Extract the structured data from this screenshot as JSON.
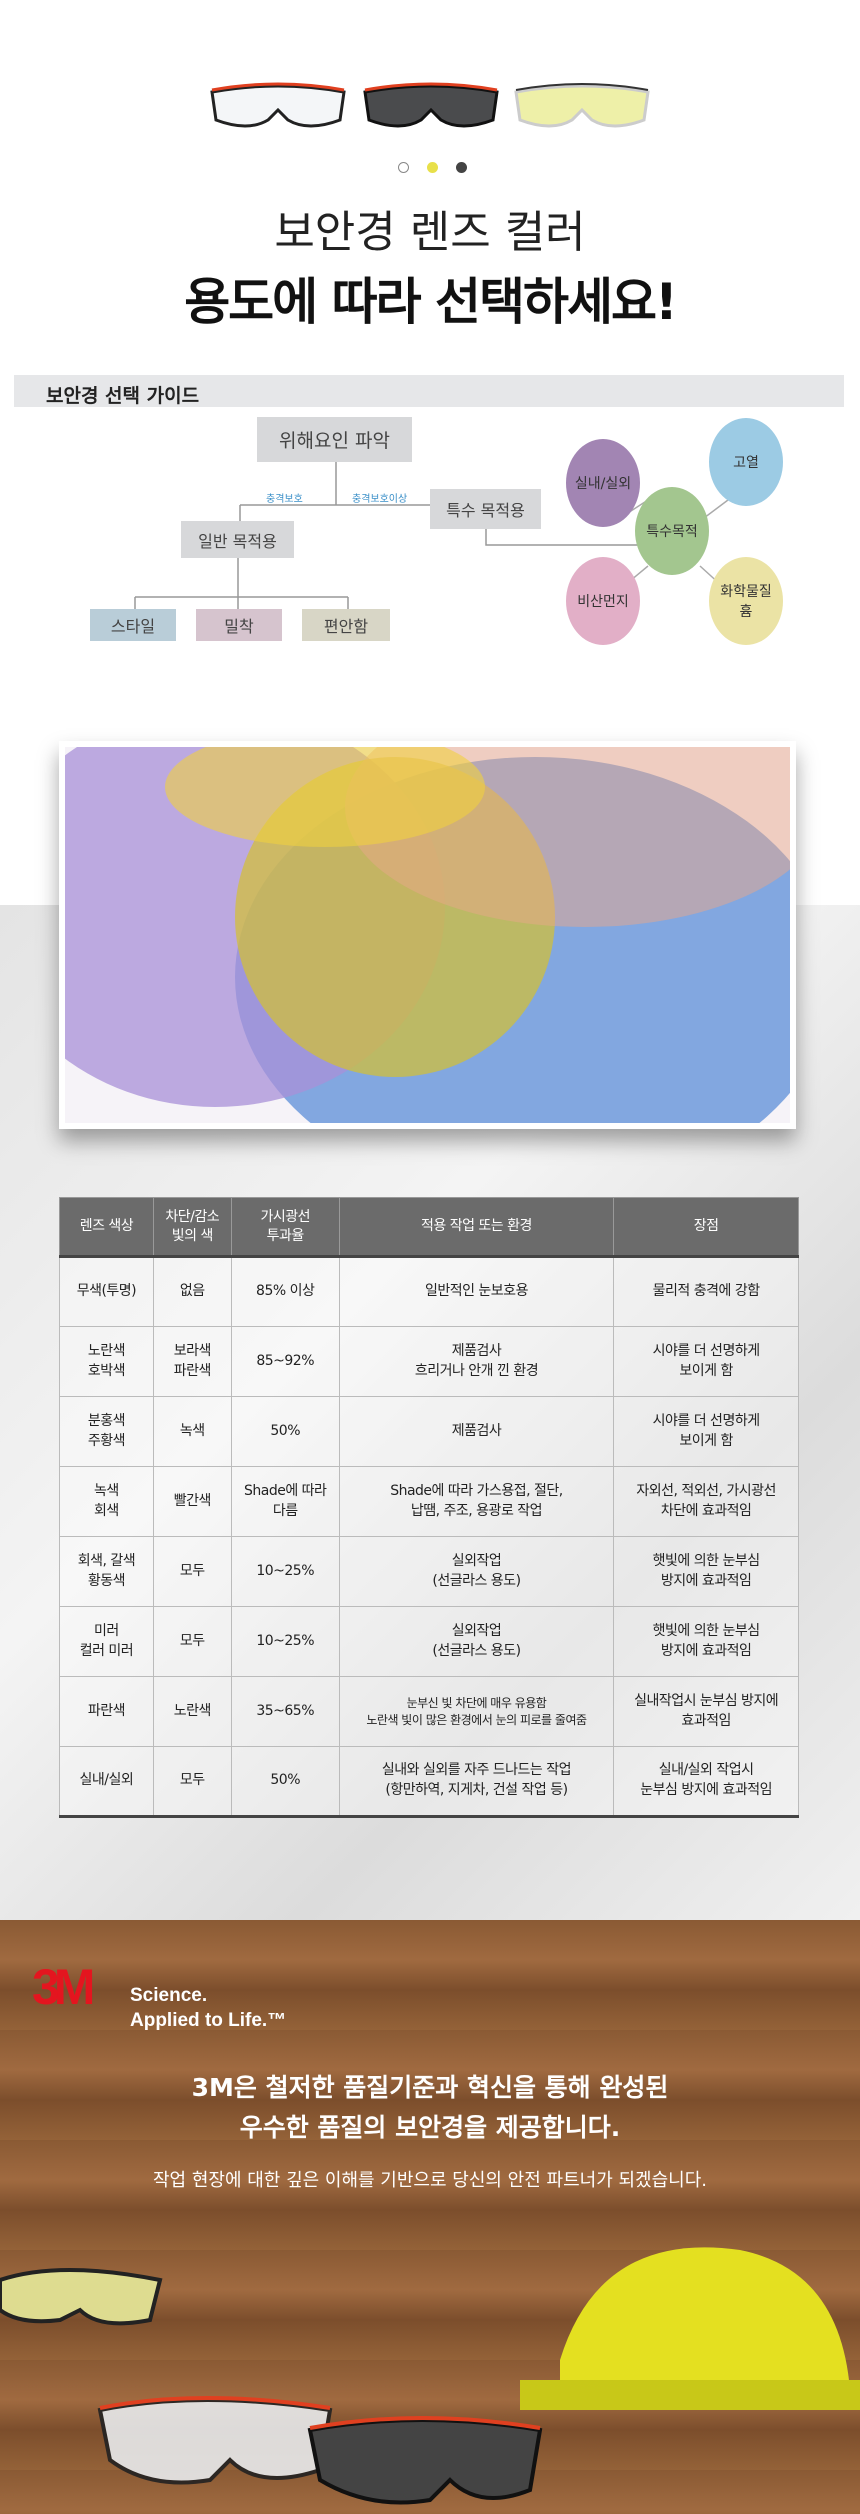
{
  "hero": {
    "dots_colors": [
      "#ffffff",
      "#e8e04a",
      "#444444"
    ],
    "title_line1": "보안경 렌즈 컬러",
    "title_line2": "용도에 따라 선택하세요!"
  },
  "guide": {
    "heading": "보안경 선택 가이드",
    "root": "위해요인 파악",
    "label_left": "충격보호",
    "label_right": "충격보호이상",
    "general": "일반 목적용",
    "special": "특수 목적용",
    "leaves": [
      "스타일",
      "밀착",
      "편안함"
    ],
    "center": "특수목적",
    "bubbles": [
      "실내/실외",
      "고열",
      "비산먼지",
      "화학물질\n흄"
    ]
  },
  "table": {
    "headers": [
      "렌즈 색상",
      "차단/감소\n빛의 색",
      "가시광선\n투과율",
      "적용 작업 또는 환경",
      "장점"
    ],
    "rows": [
      [
        "무색(투명)",
        "없음",
        "85% 이상",
        "일반적인 눈보호용",
        "물리적 충격에 강함"
      ],
      [
        "노란색\n호박색",
        "보라색\n파란색",
        "85~92%",
        "제품검사\n흐리거나 안개 낀 환경",
        "시야를 더 선명하게\n보이게 함"
      ],
      [
        "분홍색\n주황색",
        "녹색",
        "50%",
        "제품검사",
        "시야를 더 선명하게\n보이게 함"
      ],
      [
        "녹색\n회색",
        "빨간색",
        "Shade에 따라\n다름",
        "Shade에 따라 가스용접, 절단,\n납땜, 주조, 용광로 작업",
        "자외선, 적외선, 가시광선\n차단에 효과적임"
      ],
      [
        "회색, 갈색\n황동색",
        "모두",
        "10~25%",
        "실외작업\n(선글라스 용도)",
        "햇빛에 의한 눈부심\n방지에 효과적임"
      ],
      [
        "미러\n컬러 미러",
        "모두",
        "10~25%",
        "실외작업\n(선글라스 용도)",
        "햇빛에 의한 눈부심\n방지에 효과적임"
      ],
      [
        "파란색",
        "노란색",
        "35~65%",
        "눈부신 빛 차단에 매우 유용함\n노란색 빛이 많은 환경에서 눈의 피로를 줄여줌",
        "실내작업시 눈부심 방지에\n효과적임"
      ],
      [
        "실내/실외",
        "모두",
        "50%",
        "실내와 실외를 자주 드나드는 작업\n(항만하역, 지게차, 건설 작업 등)",
        "실내/실외 작업시\n눈부심 방지에 효과적임"
      ]
    ]
  },
  "brand": {
    "logo": "3M",
    "tagline1": "Science.",
    "tagline2": "Applied to Life.™",
    "message_line1": "3M은 철저한 품질기준과 혁신을 통해 완성된",
    "message_line2": "우수한 품질의 보안경을 제공합니다.",
    "sub": "작업 현장에 대한 깊은 이해를 기반으로 당신의 안전 파트너가 되겠습니다.",
    "accent": "#e4151f"
  }
}
